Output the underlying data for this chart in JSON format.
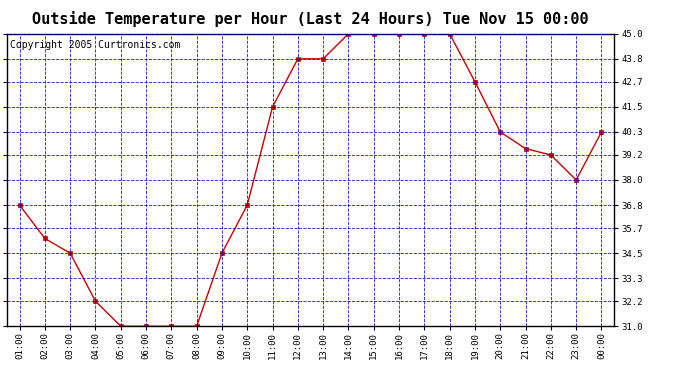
{
  "title": "Outside Temperature per Hour (Last 24 Hours) Tue Nov 15 00:00",
  "copyright": "Copyright 2005 Curtronics.com",
  "x_labels": [
    "01:00",
    "02:00",
    "03:00",
    "04:00",
    "05:00",
    "06:00",
    "07:00",
    "08:00",
    "09:00",
    "10:00",
    "11:00",
    "12:00",
    "13:00",
    "14:00",
    "15:00",
    "16:00",
    "17:00",
    "18:00",
    "19:00",
    "20:00",
    "21:00",
    "22:00",
    "23:00",
    "00:00"
  ],
  "y_values": [
    36.8,
    35.2,
    34.5,
    32.2,
    31.0,
    31.0,
    31.0,
    31.0,
    34.5,
    36.8,
    41.5,
    43.8,
    43.8,
    45.0,
    45.0,
    45.0,
    45.0,
    45.0,
    42.7,
    40.3,
    39.5,
    39.2,
    38.0,
    40.3
  ],
  "ylim": [
    31.0,
    45.0
  ],
  "yticks": [
    31.0,
    32.2,
    33.3,
    34.5,
    35.7,
    36.8,
    38.0,
    39.2,
    40.3,
    41.5,
    42.7,
    43.8,
    45.0
  ],
  "line_color": "#cc0000",
  "marker_color": "#cc0000",
  "bg_color": "#ffffff",
  "plot_bg_color": "#ffffff",
  "grid_color": "#0000cc",
  "title_fontsize": 11,
  "copyright_fontsize": 7
}
